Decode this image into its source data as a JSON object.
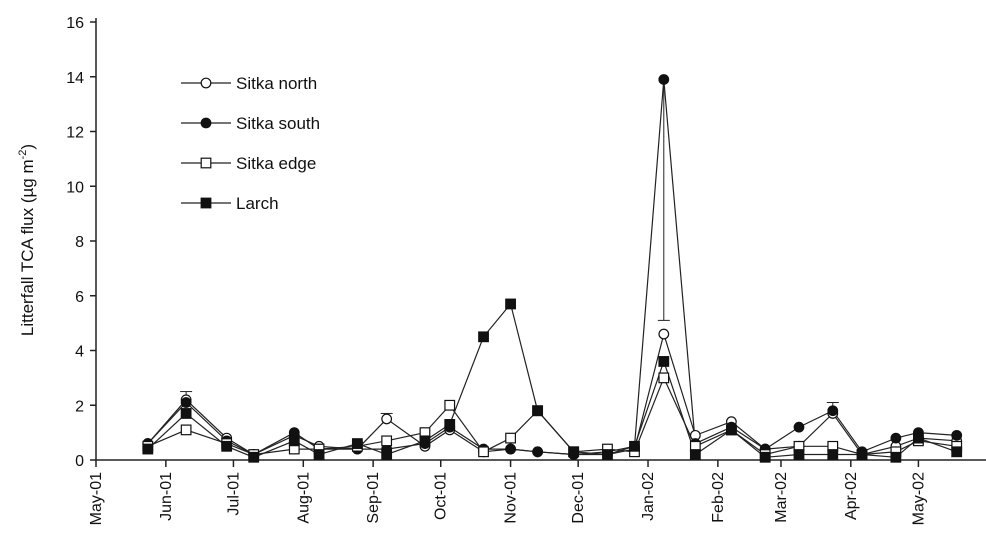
{
  "chart_data": {
    "type": "line",
    "title": "",
    "xlabel": "",
    "ylabel": "Litterfall TCA flux (µg m",
    "ylabel_superscript": "-2",
    "ylabel_close": ")",
    "ylim": [
      0,
      16
    ],
    "yticks": [
      0,
      2,
      4,
      6,
      8,
      10,
      12,
      14,
      16
    ],
    "xlim": [
      "2001-05-01",
      "2002-05-31"
    ],
    "xtick_dates": [
      "2001-05-01",
      "2001-06-01",
      "2001-07-01",
      "2001-08-01",
      "2001-09-01",
      "2001-10-01",
      "2001-11-01",
      "2001-12-01",
      "2002-01-01",
      "2002-02-01",
      "2002-03-01",
      "2002-04-01",
      "2002-05-01"
    ],
    "xtick_labels": [
      "May-01",
      "Jun-01",
      "Jul-01",
      "Aug-01",
      "Sep-01",
      "Oct-01",
      "Nov-01",
      "Dec-01",
      "Jan-02",
      "Feb-02",
      "Mar-02",
      "Apr-02",
      "May-02"
    ],
    "grid": false,
    "legend_position": "top-left",
    "x": [
      "2001-05-24",
      "2001-06-10",
      "2001-06-28",
      "2001-07-10",
      "2001-07-28",
      "2001-08-08",
      "2001-08-25",
      "2001-09-07",
      "2001-09-24",
      "2001-10-05",
      "2001-10-20",
      "2001-11-01",
      "2001-11-13",
      "2001-11-29",
      "2001-12-14",
      "2001-12-26",
      "2002-01-08",
      "2002-01-22",
      "2002-02-07",
      "2002-02-22",
      "2002-03-09",
      "2002-03-24",
      "2002-04-06",
      "2002-04-21",
      "2002-05-01",
      "2002-05-18"
    ],
    "series": [
      {
        "name": "Sitka north",
        "marker": "open-circle",
        "values": [
          0.6,
          2.2,
          0.8,
          0.2,
          0.9,
          0.5,
          0.4,
          1.5,
          0.5,
          1.1,
          0.3,
          0.4,
          0.3,
          0.2,
          0.2,
          0.4,
          4.6,
          0.9,
          1.4,
          0.4,
          0.5,
          1.7,
          0.2,
          0.5,
          0.8,
          0.7
        ]
      },
      {
        "name": "Sitka south",
        "marker": "filled-circle",
        "values": [
          0.6,
          2.1,
          0.7,
          0.2,
          1.0,
          0.4,
          0.4,
          0.4,
          0.6,
          1.2,
          0.4,
          0.4,
          0.3,
          0.2,
          0.3,
          0.5,
          13.9,
          0.6,
          1.2,
          0.4,
          1.2,
          1.8,
          0.3,
          0.8,
          1.0,
          0.9
        ]
      },
      {
        "name": "Sitka edge",
        "marker": "open-square",
        "values": [
          0.5,
          1.1,
          0.6,
          0.2,
          0.4,
          0.4,
          0.5,
          0.7,
          1.0,
          2.0,
          0.3,
          0.8,
          1.8,
          0.3,
          0.4,
          0.3,
          3.0,
          0.5,
          1.1,
          0.2,
          0.5,
          0.5,
          0.2,
          0.3,
          0.7,
          0.5
        ]
      },
      {
        "name": "Larch",
        "marker": "filled-square",
        "values": [
          0.4,
          1.7,
          0.5,
          0.1,
          0.7,
          0.2,
          0.6,
          0.2,
          0.7,
          1.3,
          4.5,
          5.7,
          1.8,
          0.3,
          0.2,
          0.5,
          3.6,
          0.2,
          1.1,
          0.1,
          0.2,
          0.2,
          0.2,
          0.1,
          0.8,
          0.3
        ]
      }
    ],
    "error_bars": [
      {
        "x": "2001-06-10",
        "upper": 2.5
      },
      {
        "x": "2001-09-07",
        "upper": 1.7
      },
      {
        "x": "2002-01-08",
        "upper": 5.1
      },
      {
        "x": "2002-03-24",
        "upper": 2.1
      }
    ]
  }
}
